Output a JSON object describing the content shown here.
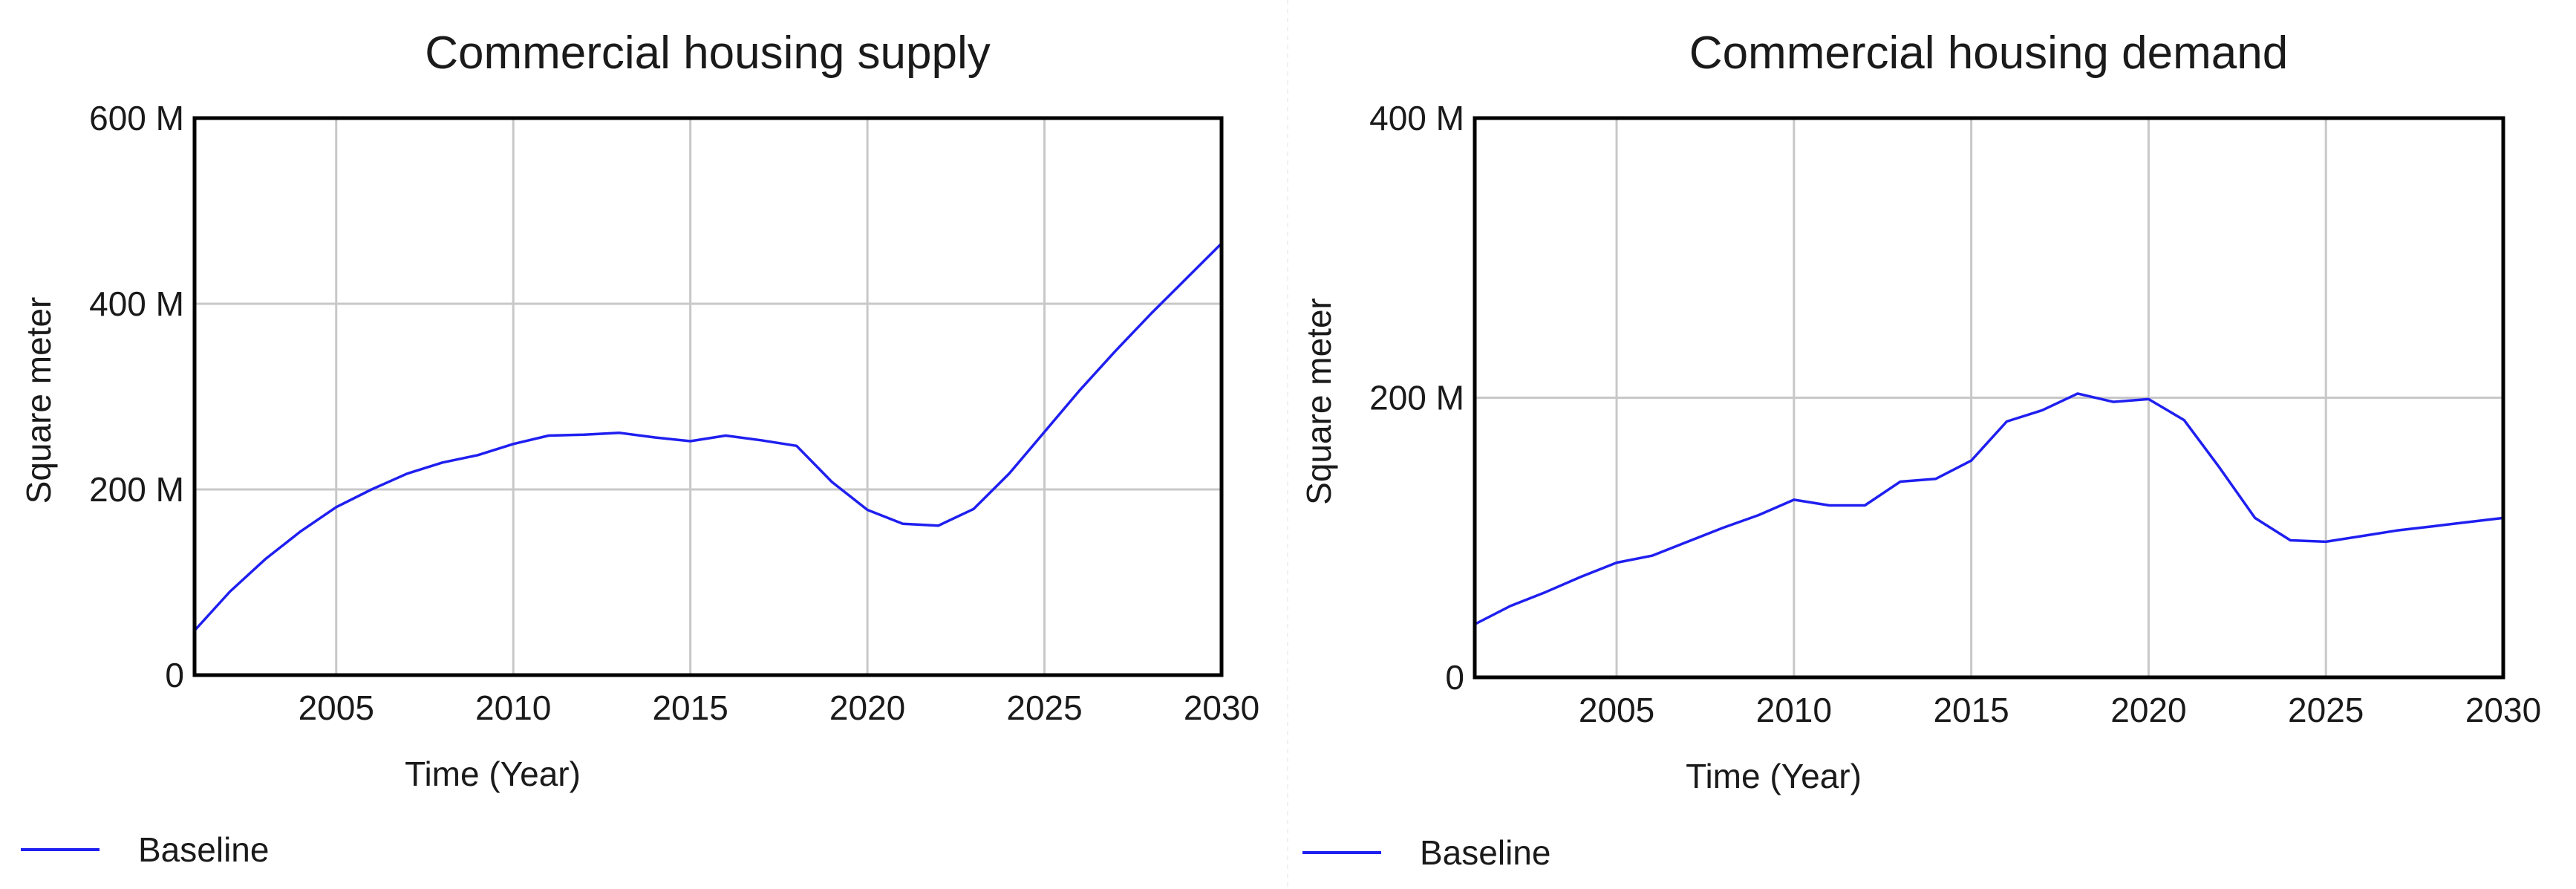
{
  "colors": {
    "series": "#1f1ff0",
    "grid": "#c8c8c8",
    "frame": "#000000"
  },
  "chart_data": [
    {
      "type": "line",
      "title": "Commercial housing supply",
      "xlabel": "Time (Year)",
      "ylabel": "Square meter",
      "xlim": [
        2001,
        2030
      ],
      "ylim": [
        0,
        600000000
      ],
      "xticks": [
        2005,
        2010,
        2015,
        2020,
        2025,
        2030
      ],
      "xtick_labels": [
        "2005",
        "2010",
        "2015",
        "2020",
        "2025",
        "2030"
      ],
      "yticks": [
        0,
        200000000,
        400000000,
        600000000
      ],
      "ytick_labels": [
        "0",
        "200 M",
        "400 M",
        "600 M"
      ],
      "grid": true,
      "legend": "bottom-left",
      "x": [
        2001,
        2002,
        2003,
        2004,
        2005,
        2006,
        2007,
        2008,
        2009,
        2010,
        2011,
        2012,
        2013,
        2014,
        2015,
        2016,
        2017,
        2018,
        2019,
        2020,
        2021,
        2022,
        2023,
        2024,
        2025,
        2026,
        2027,
        2028,
        2029,
        2030
      ],
      "series": [
        {
          "name": "Baseline",
          "values": [
            48000000,
            90000000,
            125000000,
            155000000,
            181000000,
            200000000,
            217000000,
            229000000,
            237000000,
            249000000,
            258000000,
            259000000,
            261000000,
            256000000,
            252000000,
            258000000,
            253000000,
            247000000,
            208000000,
            178000000,
            163000000,
            161000000,
            179000000,
            217000000,
            262000000,
            307000000,
            349000000,
            389000000,
            427000000,
            465000000
          ]
        }
      ]
    },
    {
      "type": "line",
      "title": "Commercial housing demand",
      "xlabel": "Time (Year)",
      "ylabel": "Square meter",
      "xlim": [
        2001,
        2030
      ],
      "ylim": [
        0,
        400000000
      ],
      "xticks": [
        2005,
        2010,
        2015,
        2020,
        2025,
        2030
      ],
      "xtick_labels": [
        "2005",
        "2010",
        "2015",
        "2020",
        "2025",
        "2030"
      ],
      "yticks": [
        0,
        200000000,
        400000000
      ],
      "ytick_labels": [
        "0",
        "200 M",
        "400 M"
      ],
      "grid": true,
      "legend": "bottom-left",
      "x": [
        2001,
        2002,
        2003,
        2004,
        2005,
        2006,
        2007,
        2008,
        2009,
        2010,
        2011,
        2012,
        2013,
        2014,
        2015,
        2016,
        2017,
        2018,
        2019,
        2020,
        2021,
        2022,
        2023,
        2024,
        2025,
        2026,
        2027,
        2028,
        2029,
        2030
      ],
      "series": [
        {
          "name": "Baseline",
          "values": [
            38000000,
            51000000,
            61000000,
            72000000,
            82000000,
            87000000,
            97000000,
            107000000,
            116000000,
            127000000,
            123000000,
            123000000,
            140000000,
            142000000,
            155000000,
            183000000,
            191000000,
            203000000,
            197000000,
            199000000,
            184000000,
            150000000,
            114000000,
            98000000,
            97000000,
            101000000,
            105000000,
            108000000,
            111000000,
            114000000
          ]
        }
      ]
    }
  ]
}
